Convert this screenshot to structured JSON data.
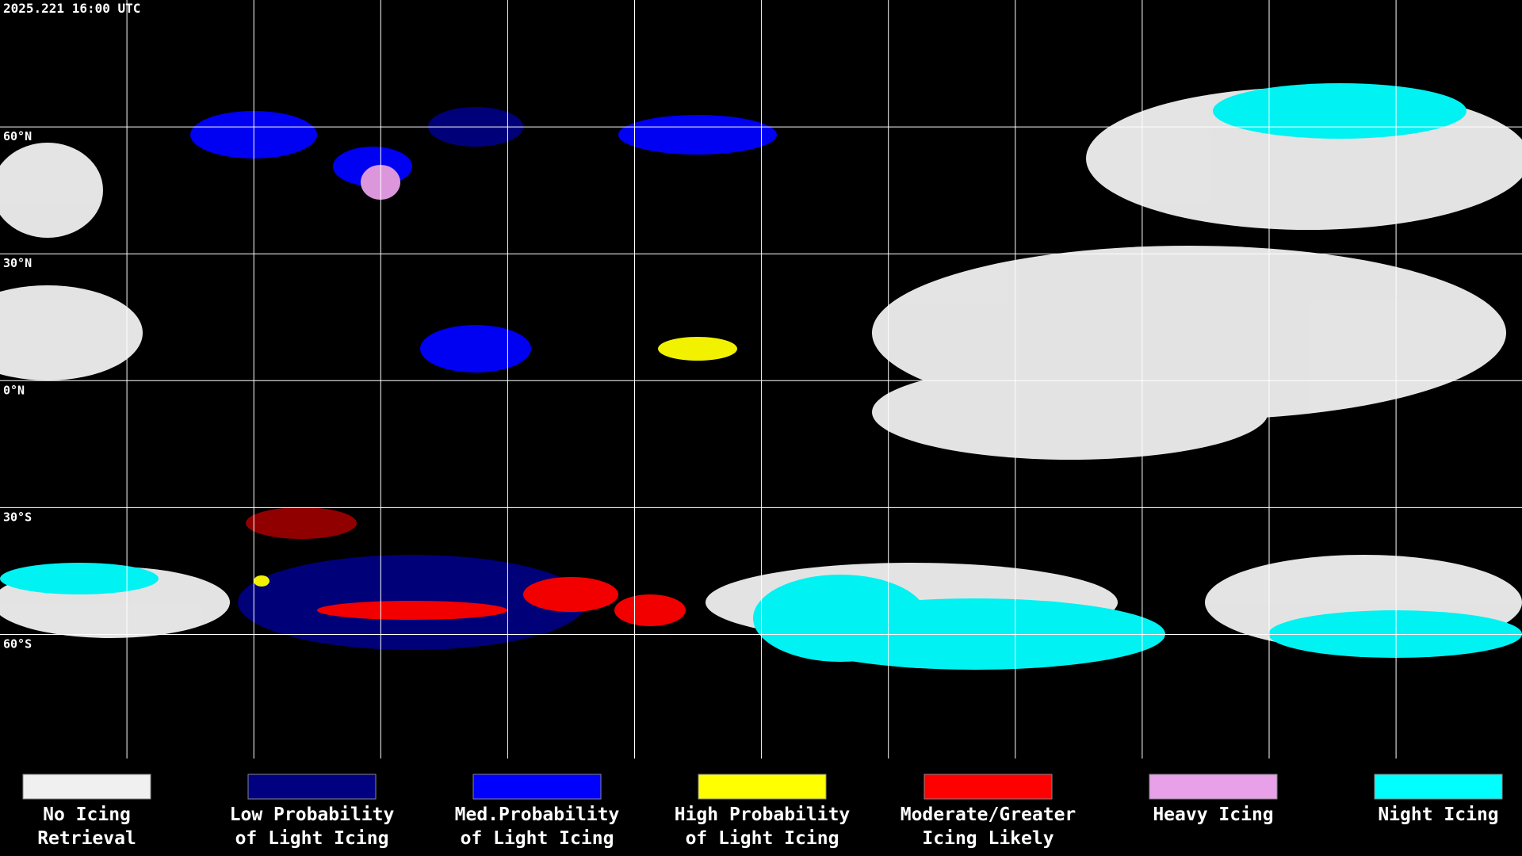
{
  "header": {
    "timestamp": "2025.221 16:00 UTC"
  },
  "latitude_labels": [
    "60°N",
    "30°N",
    "0°N",
    "30°S",
    "60°S"
  ],
  "legend": [
    {
      "lines": [
        "No Icing",
        "Retrieval"
      ],
      "color": "#f0f0f0"
    },
    {
      "lines": [
        "Low Probability",
        "of Light Icing"
      ],
      "color": "#000080"
    },
    {
      "lines": [
        "Med.Probability",
        "of Light Icing"
      ],
      "color": "#0000ff"
    },
    {
      "lines": [
        "High Probability",
        "of Light Icing"
      ],
      "color": "#ffff00"
    },
    {
      "lines": [
        "Moderate/Greater",
        "Icing Likely"
      ],
      "color": "#ff0000"
    },
    {
      "lines": [
        "Heavy Icing"
      ],
      "color": "#e8a0e8"
    },
    {
      "lines": [
        "Night Icing"
      ],
      "color": "#00ffff"
    }
  ]
}
